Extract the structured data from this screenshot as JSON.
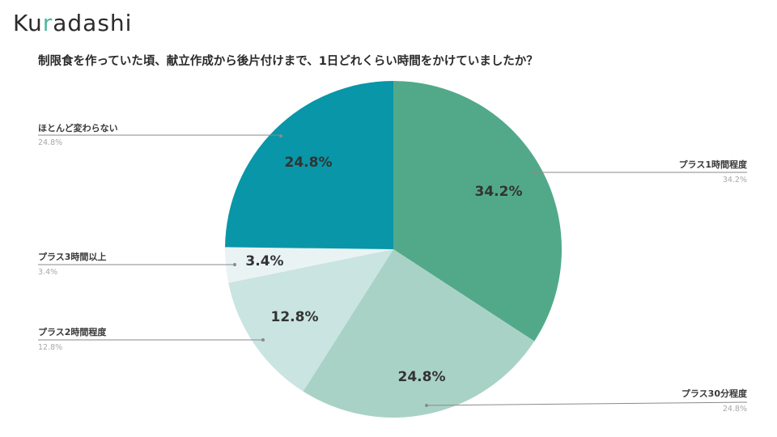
{
  "logo": {
    "text_pre": "Ku",
    "text_dot": "r",
    "text_post": "adashi"
  },
  "title": "制限食を作っていた頃、献立作成から後片付けまで、1日どれくらい時間をかけていましたか？",
  "colors": {
    "plus1h": "#52a98a",
    "plus30m": "#a9d2c6",
    "plus2h": "#c9e4e1",
    "plus3h": "#e9f3f3",
    "nochange": "#0896a8"
  },
  "labels": {
    "nochange": {
      "name": "ほとんど変わらない",
      "pct": "24.8%"
    },
    "plus1h": {
      "name": "プラス1時間程度",
      "pct": "34.2%"
    },
    "plus3h": {
      "name": "プラス3時間以上",
      "pct": "3.4%"
    },
    "plus2h": {
      "name": "プラス2時間程度",
      "pct": "12.8%"
    },
    "plus30m": {
      "name": "プラス30分程度",
      "pct": "24.8%"
    }
  },
  "chart_data": {
    "type": "pie",
    "title": "制限食を作っていた頃、献立作成から後片付けまで、1日どれくらい時間をかけていましたか？",
    "categories": [
      "プラス1時間程度",
      "プラス30分程度",
      "プラス2時間程度",
      "プラス3時間以上",
      "ほとんど変わらない"
    ],
    "values": [
      34.2,
      24.8,
      12.8,
      3.4,
      24.8
    ],
    "unit": "%",
    "start_angle": "12 o'clock, clockwise",
    "legend_position": "callout labels"
  }
}
